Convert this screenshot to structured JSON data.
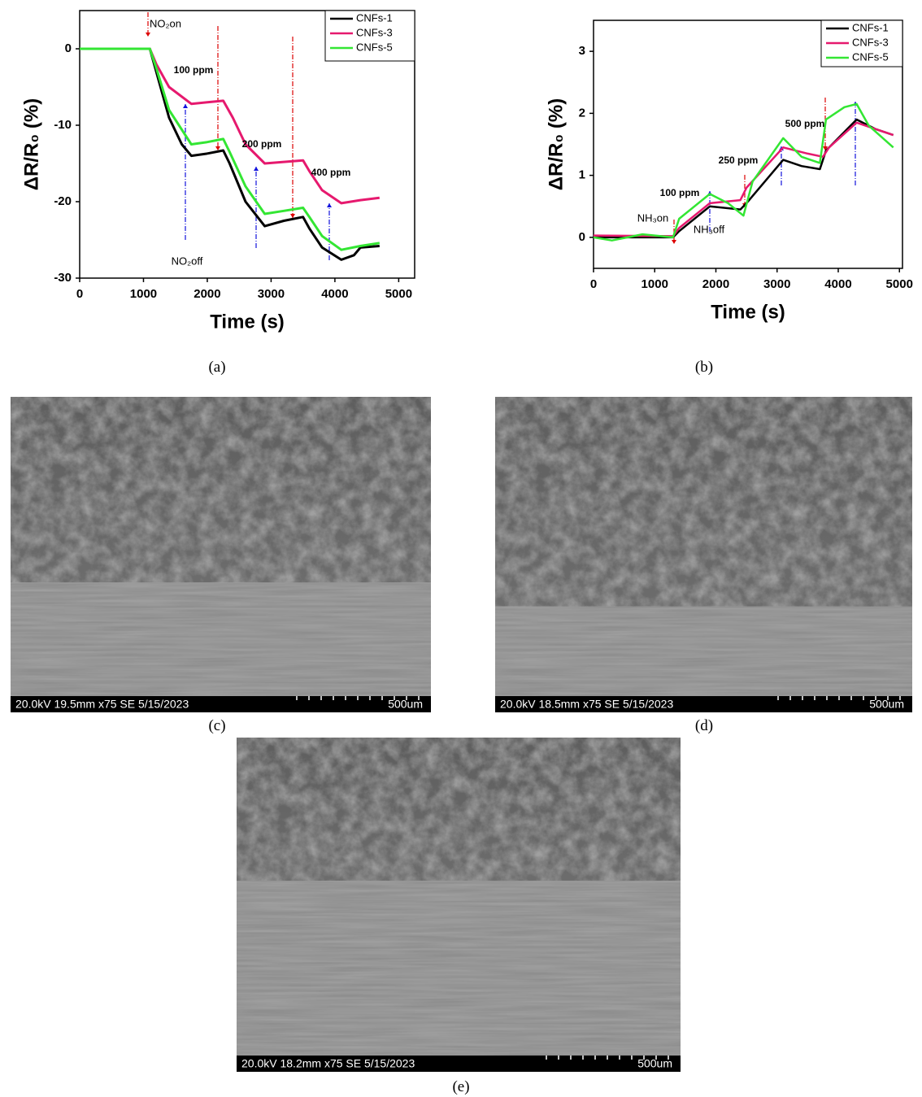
{
  "chart_data": [
    {
      "type": "line",
      "xlabel": "Time (s)",
      "ylabel": "ΔR/R₀ (%)",
      "xlim": [
        0,
        5250
      ],
      "ylim": [
        -30,
        5
      ],
      "xticks": [
        0,
        1000,
        2000,
        3000,
        4000,
        5000
      ],
      "yticks": [
        -30,
        -20,
        -10,
        0
      ],
      "legend": "upper right",
      "annotations": [
        "NO₂on",
        "100 ppm",
        "200 ppm",
        "400 ppm",
        "NO₂off"
      ],
      "series": [
        {
          "name": "CNFs-1",
          "color": "#000000",
          "x": [
            0,
            1100,
            1200,
            1400,
            1600,
            1750,
            2000,
            2250,
            2350,
            2600,
            2900,
            3200,
            3500,
            3600,
            3800,
            4100,
            4300,
            4400,
            4700
          ],
          "values": [
            0,
            0,
            -3,
            -9,
            -12.5,
            -14,
            -13.7,
            -13.3,
            -15,
            -20,
            -23.2,
            -22.5,
            -22,
            -23.5,
            -26,
            -27.6,
            -27,
            -26,
            -25.8
          ]
        },
        {
          "name": "CNFs-3",
          "color": "#e6196e",
          "x": [
            0,
            1100,
            1200,
            1400,
            1750,
            2000,
            2250,
            2400,
            2600,
            2900,
            3200,
            3500,
            3600,
            3800,
            4100,
            4400,
            4700
          ],
          "values": [
            0,
            0,
            -2,
            -5,
            -7.2,
            -7,
            -6.8,
            -9,
            -12.5,
            -15,
            -14.8,
            -14.6,
            -16,
            -18.5,
            -20.2,
            -19.8,
            -19.5
          ]
        },
        {
          "name": "CNFs-5",
          "color": "#33e633",
          "x": [
            0,
            1100,
            1200,
            1400,
            1750,
            2000,
            2250,
            2350,
            2600,
            2900,
            3200,
            3500,
            3600,
            3800,
            4100,
            4400,
            4700
          ],
          "values": [
            0,
            0,
            -2.5,
            -8,
            -12.5,
            -12.2,
            -11.8,
            -13.5,
            -18,
            -21.6,
            -21.2,
            -20.8,
            -22,
            -24.5,
            -26.3,
            -25.8,
            -25.4
          ]
        }
      ]
    },
    {
      "type": "line",
      "xlabel": "Time (s)",
      "ylabel": "ΔR/R₀ (%)",
      "xlim": [
        0,
        5050
      ],
      "ylim": [
        -0.5,
        3.5
      ],
      "xticks": [
        0,
        1000,
        2000,
        3000,
        4000,
        5000
      ],
      "yticks": [
        0,
        1,
        2,
        3
      ],
      "legend": "upper right",
      "annotations": [
        "100 ppm",
        "250 ppm",
        "500 ppm",
        "NH₃on",
        "NH₃off"
      ],
      "series": [
        {
          "name": "CNFs-1",
          "color": "#000000",
          "x": [
            0,
            1300,
            1400,
            1900,
            2400,
            2500,
            3100,
            3400,
            3700,
            3800,
            4300,
            4600,
            4900
          ],
          "values": [
            0,
            0,
            0.1,
            0.5,
            0.45,
            0.55,
            1.25,
            1.15,
            1.1,
            1.4,
            1.9,
            1.75,
            1.65
          ]
        },
        {
          "name": "CNFs-3",
          "color": "#e6196e",
          "x": [
            0,
            1300,
            1400,
            1900,
            2400,
            2500,
            3100,
            3500,
            3750,
            3850,
            4300,
            4600,
            4900
          ],
          "values": [
            0.03,
            0.02,
            0.15,
            0.55,
            0.6,
            0.8,
            1.45,
            1.35,
            1.3,
            1.45,
            1.85,
            1.75,
            1.65
          ]
        },
        {
          "name": "CNFs-5",
          "color": "#33e633",
          "x": [
            0,
            300,
            800,
            1300,
            1400,
            1900,
            2200,
            2450,
            2600,
            3100,
            3400,
            3700,
            3800,
            4100,
            4300,
            4500,
            4900
          ],
          "values": [
            0,
            -0.05,
            0.05,
            0,
            0.3,
            0.7,
            0.55,
            0.35,
            0.9,
            1.6,
            1.3,
            1.2,
            1.9,
            2.1,
            2.15,
            1.8,
            1.45
          ]
        }
      ]
    }
  ],
  "captions": [
    "(a)",
    "(b)",
    "(c)",
    "(d)",
    "(e)"
  ],
  "micrographs": [
    {
      "info": "20.0kV 19.5mm x75 SE  5/15/2023",
      "scale": "500um"
    },
    {
      "info": "20.0kV 18.5mm x75 SE  5/15/2023",
      "scale": "500um"
    },
    {
      "info": "20.0kV 18.2mm x75 SE  5/15/2023",
      "scale": "500um"
    }
  ]
}
